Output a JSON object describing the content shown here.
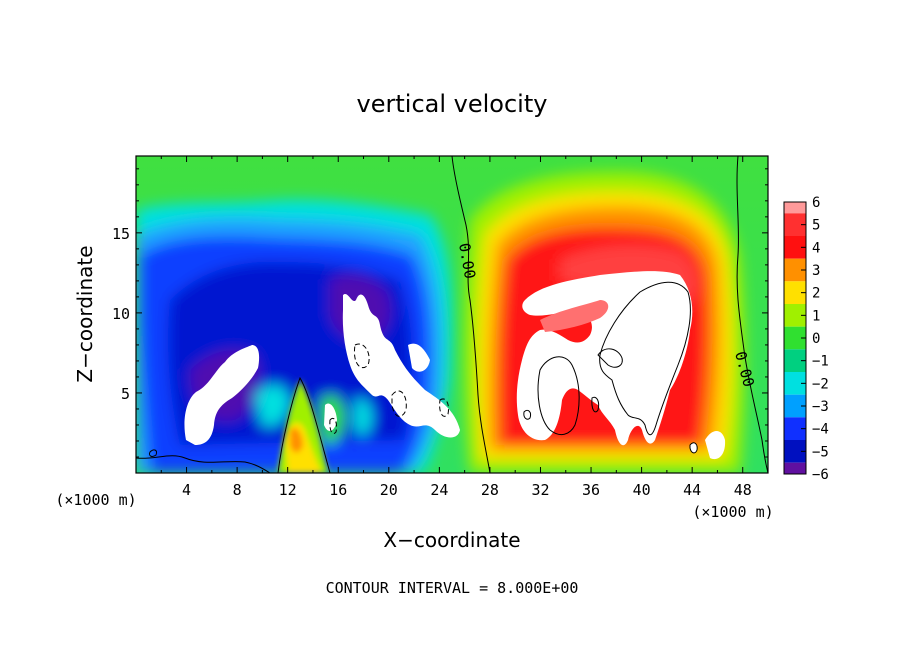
{
  "chart_data": {
    "type": "heatmap",
    "title": "vertical velocity",
    "xlabel": "X−coordinate",
    "ylabel": "Z−coordinate",
    "x_unit": "(×1000 m)",
    "x_unit_right": "(×1000 m)",
    "footer": "CONTOUR INTERVAL = 8.000E+00",
    "xlim": [
      0,
      50
    ],
    "ylim": [
      0,
      19.8
    ],
    "x_ticks": [
      "4",
      "8",
      "12",
      "16",
      "20",
      "24",
      "28",
      "32",
      "36",
      "40",
      "44",
      "48"
    ],
    "x_tick_values": [
      4,
      8,
      12,
      16,
      20,
      24,
      28,
      32,
      36,
      40,
      44,
      48
    ],
    "y_ticks": [
      "5",
      "10",
      "15"
    ],
    "y_tick_values": [
      5,
      10,
      15
    ],
    "colorbar": {
      "labels": [
        "6",
        "5",
        "4",
        "3",
        "2",
        "1",
        "0",
        "−1",
        "−2",
        "−3",
        "−4",
        "−5",
        "−6"
      ],
      "values": [
        6,
        5,
        4,
        3,
        2,
        1,
        0,
        -1,
        -2,
        -3,
        -4,
        -5,
        -6
      ],
      "colors": [
        "#ff9a9a",
        "#ff3030",
        "#ff1010",
        "#ff9000",
        "#ffe000",
        "#a0f000",
        "#30e030",
        "#00d080",
        "#00e0e0",
        "#00a0ff",
        "#1030ff",
        "#0010c0",
        "#6010a0"
      ]
    },
    "contour_labels": [
      "0.00",
      "0.00"
    ],
    "features": [
      {
        "sign": "negative",
        "x_range": [
          1,
          26
        ],
        "z_range": [
          0,
          17
        ],
        "min": "< −6"
      },
      {
        "sign": "positive",
        "x_range": [
          28,
          47
        ],
        "z_range": [
          0,
          18
        ],
        "max": "> 6"
      }
    ]
  }
}
